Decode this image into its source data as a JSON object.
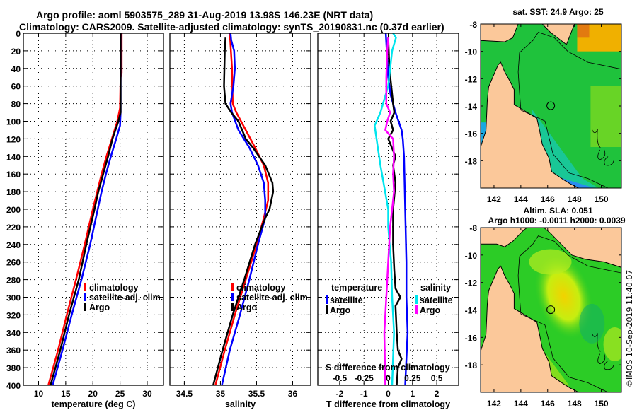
{
  "header": {
    "title_line1": "Argo profile: aoml 5903575_289 31-Aug-2019 13.98S 146.23E (NRT data)",
    "title_line2": "Climatology: CARS2009. Satellite-adjusted climatology: synTS_20190831.nc (0.37d earlier)"
  },
  "colors": {
    "climatology": "#ff0000",
    "satellite_adj": "#0000ff",
    "argo": "#000000",
    "s_satellite": "#00e5ee",
    "s_argo": "#ff00ff",
    "land": "#fbc89a"
  },
  "chart_data": [
    {
      "id": "temperature",
      "type": "line",
      "xlabel": "temperature (deg C)",
      "ylabel": "",
      "xlim": [
        7.2,
        33
      ],
      "ylim": [
        400,
        0
      ],
      "xticks": [
        10,
        15,
        20,
        25,
        30
      ],
      "yticks": [
        0,
        20,
        40,
        60,
        80,
        100,
        120,
        140,
        160,
        180,
        200,
        220,
        240,
        260,
        280,
        300,
        320,
        340,
        360,
        380,
        400
      ],
      "grid": true,
      "legend_position": "center-right",
      "legend": [
        "climatology",
        "satellite-adj. clim.",
        "Argo"
      ],
      "series": [
        {
          "name": "climatology",
          "color_key": "climatology",
          "depth": [
            0,
            45,
            50,
            85,
            100,
            120,
            140,
            160,
            180,
            200,
            240,
            280,
            320,
            360,
            400
          ],
          "values": [
            25.3,
            25.3,
            25.1,
            25.0,
            24.5,
            23.5,
            22.5,
            21.6,
            20.8,
            20.0,
            18.5,
            16.9,
            15.2,
            13.6,
            11.8
          ]
        },
        {
          "name": "satellite-adj. clim.",
          "color_key": "satellite_adj",
          "depth": [
            0,
            50,
            90,
            105,
            120,
            140,
            160,
            180,
            200,
            240,
            280,
            320,
            360,
            400
          ],
          "values": [
            25.1,
            25.1,
            25.1,
            25.0,
            24.3,
            23.3,
            22.4,
            21.6,
            20.9,
            19.5,
            17.9,
            16.1,
            14.4,
            12.6
          ]
        },
        {
          "name": "Argo",
          "color_key": "argo",
          "depth": [
            0,
            90,
            100,
            120,
            140,
            160,
            180,
            200,
            240,
            280,
            320,
            360,
            400
          ],
          "values": [
            25.1,
            25.1,
            24.7,
            23.6,
            22.8,
            21.9,
            21.0,
            20.3,
            18.8,
            17.4,
            15.6,
            14.0,
            12.2
          ]
        }
      ]
    },
    {
      "id": "salinity",
      "type": "line",
      "xlabel": "salinity",
      "ylabel": "",
      "xlim": [
        34.3,
        36.25
      ],
      "ylim": [
        400,
        0
      ],
      "xticks": [
        34.5,
        35,
        35.5,
        36
      ],
      "yticks": [
        0,
        20,
        40,
        60,
        80,
        100,
        120,
        140,
        160,
        180,
        200,
        220,
        240,
        260,
        280,
        300,
        320,
        340,
        360,
        380,
        400
      ],
      "grid": true,
      "legend_position": "center-right",
      "legend": [
        "climatology",
        "satellite-adj. clim.",
        "Argo"
      ],
      "series": [
        {
          "name": "climatology",
          "color_key": "climatology",
          "depth": [
            0,
            40,
            80,
            90,
            110,
            130,
            150,
            170,
            190,
            210,
            240,
            280,
            320,
            360,
            400
          ],
          "values": [
            35.13,
            35.16,
            35.17,
            35.22,
            35.35,
            35.48,
            35.6,
            35.66,
            35.66,
            35.6,
            35.5,
            35.35,
            35.2,
            35.06,
            34.93
          ]
        },
        {
          "name": "satellite-adj. clim.",
          "color_key": "satellite_adj",
          "depth": [
            0,
            8,
            20,
            40,
            60,
            80,
            90,
            110,
            130,
            150,
            170,
            190,
            210,
            240,
            280,
            320,
            360,
            400
          ],
          "values": [
            35.14,
            35.15,
            35.19,
            35.2,
            35.18,
            35.14,
            35.16,
            35.25,
            35.4,
            35.52,
            35.6,
            35.62,
            35.62,
            35.52,
            35.4,
            35.27,
            35.13,
            35.02
          ]
        },
        {
          "name": "Argo",
          "color_key": "argo",
          "depth": [
            5,
            20,
            60,
            80,
            90,
            100,
            120,
            130,
            150,
            170,
            180,
            200,
            210,
            240,
            280,
            320,
            360,
            400
          ],
          "values": [
            35.07,
            35.06,
            35.05,
            35.07,
            35.15,
            35.25,
            35.35,
            35.45,
            35.62,
            35.72,
            35.73,
            35.68,
            35.62,
            35.48,
            35.33,
            35.17,
            35.03,
            34.9
          ]
        }
      ]
    },
    {
      "id": "difference",
      "type": "line",
      "xlabel": "T difference from climatology",
      "xlabel_top": "S difference from climatology",
      "ylabel": "",
      "xlim": [
        -2.9,
        2.9
      ],
      "x2lim": [
        -0.725,
        0.725
      ],
      "ylim": [
        400,
        0
      ],
      "xticks": [
        -2,
        -1,
        0,
        1,
        2
      ],
      "x2ticks": [
        "-0.5",
        "-0.25",
        "0",
        "0.25",
        "0.5"
      ],
      "yticks": [
        0,
        20,
        40,
        60,
        80,
        100,
        120,
        140,
        160,
        180,
        200,
        220,
        240,
        260,
        280,
        300,
        320,
        340,
        360,
        380,
        400
      ],
      "grid": true,
      "legend_temperature": {
        "title": "temperature",
        "items": [
          "satellite",
          "Argo"
        ]
      },
      "legend_salinity": {
        "title": "salinity",
        "items": [
          "satellite",
          "Argo"
        ]
      },
      "series": [
        {
          "name": "temperature satellite",
          "axis": "T",
          "color_key": "satellite_adj",
          "depth": [
            0,
            50,
            70,
            90,
            110,
            120,
            140,
            200,
            260,
            300,
            340,
            400
          ],
          "values": [
            -0.1,
            0.0,
            0.1,
            0.3,
            0.55,
            0.6,
            0.65,
            0.7,
            0.75,
            0.75,
            0.8,
            0.7
          ]
        },
        {
          "name": "temperature Argo",
          "axis": "T",
          "color_key": "argo",
          "depth": [
            5,
            40,
            80,
            90,
            100,
            110,
            120,
            140,
            150,
            170,
            200,
            240,
            270,
            290,
            300,
            310,
            340,
            360,
            370,
            380,
            400
          ],
          "values": [
            0.0,
            0.05,
            0.2,
            0.25,
            0.1,
            0.2,
            0.0,
            0.3,
            0.2,
            0.3,
            0.2,
            0.2,
            0.25,
            0.3,
            0.5,
            0.3,
            0.35,
            0.4,
            0.55,
            0.4,
            0.35
          ]
        },
        {
          "name": "salinity satellite",
          "axis": "S",
          "color_key": "s_satellite",
          "depth": [
            0,
            5,
            20,
            60,
            90,
            105,
            120,
            150,
            200,
            220,
            260,
            300,
            340,
            400
          ],
          "values": [
            0.05,
            0.08,
            0.04,
            0.0,
            -0.08,
            -0.14,
            -0.12,
            -0.08,
            0.0,
            0.0,
            0.03,
            0.04,
            0.06,
            0.04
          ]
        },
        {
          "name": "salinity Argo",
          "axis": "S",
          "color_key": "s_argo",
          "depth": [
            5,
            20,
            50,
            80,
            90,
            100,
            110,
            120,
            140,
            160,
            180,
            200,
            220,
            260,
            300,
            340,
            400
          ],
          "values": [
            0.0,
            -0.01,
            -0.02,
            -0.02,
            0.02,
            -0.01,
            -0.03,
            0.05,
            0.06,
            0.05,
            0.06,
            0.04,
            0.02,
            0.0,
            -0.02,
            -0.04,
            -0.03
          ]
        }
      ]
    }
  ],
  "maps": [
    {
      "id": "sst-map",
      "title": "sat. SST: 24.9 Argo: 25",
      "title_line2": "",
      "xticks": [
        "142",
        "144",
        "146",
        "148",
        "150"
      ],
      "yticks": [
        "-8",
        "-10",
        "-12",
        "-14",
        "-16",
        "-18"
      ],
      "lon_range": [
        141,
        151.5
      ],
      "lat_range": [
        -20,
        -8
      ],
      "marker": {
        "lon": 146.23,
        "lat": -13.98
      }
    },
    {
      "id": "sla-map",
      "title": "Altim. SLA: 0.051",
      "title_line2": "Argo h1000: -0.0011 h2000: 0.0039",
      "xticks": [
        "142",
        "144",
        "146",
        "148",
        "150"
      ],
      "yticks": [
        "-8",
        "-10",
        "-12",
        "-14",
        "-16",
        "-18"
      ],
      "lon_range": [
        141,
        151.5
      ],
      "lat_range": [
        -20,
        -8
      ],
      "marker": {
        "lon": 146.23,
        "lat": -13.98
      }
    }
  ],
  "footer": {
    "copyright": "©IMOS 10-Sep-2019 11:40:07"
  }
}
